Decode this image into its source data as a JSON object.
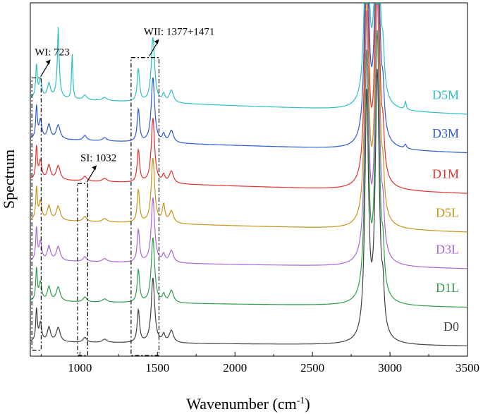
{
  "chart_data": {
    "type": "line",
    "title": "",
    "xlabel": "Wavenumber (cm",
    "xlabel_sup": "-1",
    "xlabel_close": ")",
    "ylabel": "Spectrum",
    "xlim": [
      680,
      3500
    ],
    "ylim": [
      0,
      8
    ],
    "x_ticks": [
      1000,
      1500,
      2000,
      2500,
      3000,
      3500
    ],
    "x_tick_labels": [
      "1000",
      "1500",
      "2000",
      "2500",
      "3000",
      "3500"
    ],
    "y_ticks_visible": false,
    "stack_offset": 1.0,
    "peaks": [
      {
        "wn": 720,
        "w": 6,
        "a": 0.8
      },
      {
        "wn": 745,
        "w": 10,
        "a": 0.45
      },
      {
        "wn": 800,
        "w": 12,
        "a": 0.35
      },
      {
        "wn": 860,
        "w": 15,
        "a": 0.35
      },
      {
        "wn": 1032,
        "w": 14,
        "a": 0.12
      },
      {
        "wn": 1160,
        "w": 18,
        "a": 0.08
      },
      {
        "wn": 1377,
        "w": 9,
        "a": 0.8
      },
      {
        "wn": 1471,
        "w": 13,
        "a": 1.6
      },
      {
        "wn": 1540,
        "w": 10,
        "a": 0.18
      },
      {
        "wn": 1590,
        "w": 16,
        "a": 0.3
      },
      {
        "wn": 2850,
        "w": 14,
        "a": 6.0
      },
      {
        "wn": 2918,
        "w": 16,
        "a": 6.5
      },
      {
        "wn": 2955,
        "w": 10,
        "a": 0.8
      }
    ],
    "series": [
      {
        "name": "D0",
        "color": "#404040",
        "offset": 0,
        "slope": -0.1,
        "extra": []
      },
      {
        "name": "D1L",
        "color": "#2e9e4a",
        "offset": 1,
        "slope": -0.15,
        "extra": []
      },
      {
        "name": "D3L",
        "color": "#a866d8",
        "offset": 2,
        "slope": -0.2,
        "extra": []
      },
      {
        "name": "D5L",
        "color": "#c9941a",
        "offset": 3,
        "slope": -0.3,
        "extra": [
          {
            "wn": 1540,
            "w": 10,
            "a": 0.25
          }
        ]
      },
      {
        "name": "D1M",
        "color": "#e8302d",
        "offset": 4,
        "slope": -0.35,
        "extra": []
      },
      {
        "name": "D3M",
        "color": "#2a5bd8",
        "offset": 5,
        "slope": -0.35,
        "extra": [
          {
            "wn": 3100,
            "w": 8,
            "a": 0.1
          }
        ]
      },
      {
        "name": "D5M",
        "color": "#2ebfc4",
        "offset": 6,
        "slope": -0.4,
        "extra": [
          {
            "wn": 860,
            "w": 6,
            "a": 1.4
          },
          {
            "wn": 950,
            "w": 5,
            "a": 1.1
          },
          {
            "wn": 3100,
            "w": 6,
            "a": 0.2
          }
        ]
      }
    ],
    "annotations": [
      {
        "label": "WI: 723",
        "box": [
          690,
          750
        ],
        "y_range": [
          -0.2,
          6.5
        ]
      },
      {
        "label": "SI: 1032",
        "box": [
          985,
          1050
        ],
        "y_range": [
          -0.4,
          3.9
        ]
      },
      {
        "label": "WII: 1377+1471",
        "box": [
          1330,
          1510
        ],
        "y_range": [
          -0.7,
          7.0
        ]
      }
    ]
  }
}
